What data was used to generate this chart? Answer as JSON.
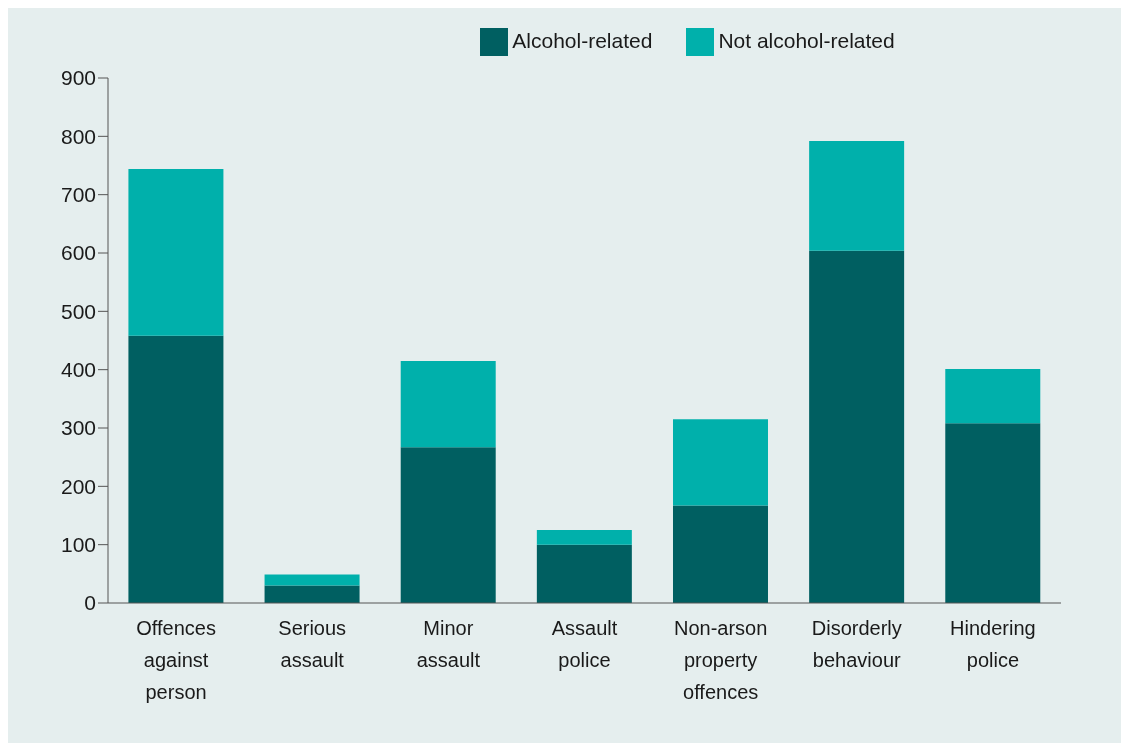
{
  "chart_data": {
    "type": "bar",
    "stacked": true,
    "categories": [
      "Offences against person",
      "Serious assault",
      "Minor assault",
      "Assault police",
      "Non-arson property offences",
      "Disorderly behaviour",
      "Hindering police"
    ],
    "series": [
      {
        "name": "Alcohol-related",
        "color": "#005f61",
        "values": [
          458,
          30,
          267,
          100,
          167,
          604,
          308
        ]
      },
      {
        "name": "Not alcohol-related",
        "color": "#00b0ab",
        "values": [
          286,
          19,
          148,
          25,
          148,
          188,
          93
        ]
      }
    ],
    "ylim": [
      0,
      900
    ],
    "yticks": [
      0,
      100,
      200,
      300,
      400,
      500,
      600,
      700,
      800,
      900
    ],
    "grid": false,
    "legend": "top"
  }
}
